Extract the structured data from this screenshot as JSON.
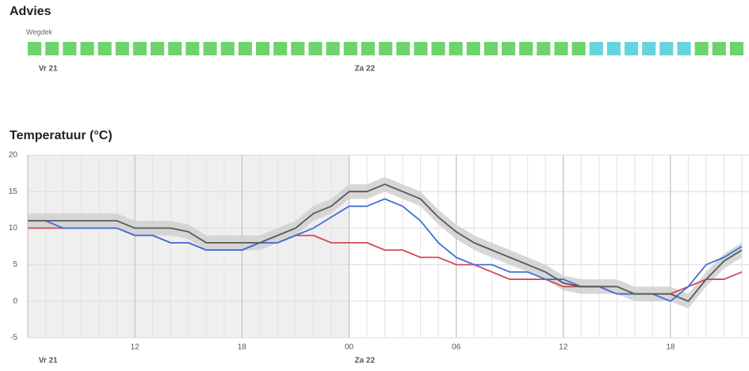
{
  "advice": {
    "title": "Advies",
    "label": "Wegdek",
    "cells": [
      "#6dd46d",
      "#6dd46d",
      "#6dd46d",
      "#6dd46d",
      "#6dd46d",
      "#6dd46d",
      "#6dd46d",
      "#6dd46d",
      "#6dd46d",
      "#6dd46d",
      "#6dd46d",
      "#6dd46d",
      "#6dd46d",
      "#6dd46d",
      "#6dd46d",
      "#6dd46d",
      "#6dd46d",
      "#6dd46d",
      "#6dd46d",
      "#6dd46d",
      "#6dd46d",
      "#6dd46d",
      "#6dd46d",
      "#6dd46d",
      "#6dd46d",
      "#6dd46d",
      "#6dd46d",
      "#6dd46d",
      "#6dd46d",
      "#6dd46d",
      "#6dd46d",
      "#6dd46d",
      "#66d4dc",
      "#66d4dc",
      "#66d4dc",
      "#66d4dc",
      "#66d4dc",
      "#66d4dc",
      "#6dd46d",
      "#6dd46d",
      "#6dd46d"
    ]
  },
  "chart_data": {
    "type": "line",
    "title": "Temperatuur (°C)",
    "x": [
      0,
      1,
      2,
      3,
      4,
      5,
      6,
      7,
      8,
      9,
      10,
      11,
      12,
      13,
      14,
      15,
      16,
      17,
      18,
      19,
      20,
      21,
      22,
      23,
      24,
      25,
      26,
      27,
      28,
      29,
      30,
      31,
      32,
      33,
      34,
      35,
      36,
      37,
      38,
      39,
      40
    ],
    "xlim": [
      0,
      40.4
    ],
    "xticks": [
      {
        "value": 6,
        "label": "12"
      },
      {
        "value": 12,
        "label": "18"
      },
      {
        "value": 18,
        "label": "00"
      },
      {
        "value": 24,
        "label": "06"
      },
      {
        "value": 30,
        "label": "12"
      },
      {
        "value": 36,
        "label": "18"
      }
    ],
    "day_labels": [
      {
        "x": 0.3,
        "label": "Vr 21"
      },
      {
        "x": 18,
        "label": "Za 22"
      }
    ],
    "shaded_until": 18,
    "ylim": [
      -5,
      20
    ],
    "yticks": [
      -5,
      0,
      5,
      10,
      15,
      20
    ],
    "grid": true,
    "band": {
      "color": "#d0d0d0",
      "low": [
        10,
        10,
        10,
        10,
        10,
        10,
        9,
        9,
        9,
        8.5,
        7,
        7,
        7,
        7,
        8,
        9,
        11,
        12,
        14,
        14,
        15,
        14,
        13,
        10.5,
        8.5,
        7,
        6,
        5,
        4,
        3,
        1.5,
        1,
        1,
        1,
        0,
        0,
        0,
        -1,
        2,
        4.5,
        6
      ],
      "high": [
        12,
        12,
        12,
        12,
        12,
        12,
        11,
        11,
        11,
        10.5,
        9,
        9,
        9,
        9,
        10,
        11,
        13,
        14,
        16,
        16,
        17,
        16,
        15,
        12.5,
        10.5,
        9,
        8,
        7,
        6,
        5,
        3.5,
        3,
        3,
        3,
        2,
        2,
        2,
        1,
        4,
        6.5,
        8
      ]
    },
    "series": [
      {
        "color": "#d04a5a",
        "values": [
          10,
          10,
          10,
          10,
          10,
          10,
          9,
          9,
          8,
          8,
          7,
          7,
          7,
          8,
          8,
          9,
          9,
          8,
          8,
          8,
          7,
          7,
          6,
          6,
          5,
          5,
          4,
          3,
          3,
          3,
          2,
          2,
          2,
          1,
          1,
          1,
          1,
          2,
          3,
          3,
          4
        ]
      },
      {
        "color": "#3f6fd8",
        "values": [
          11,
          11,
          10,
          10,
          10,
          10,
          9,
          9,
          8,
          8,
          7,
          7,
          7,
          8,
          8,
          9,
          10,
          11.5,
          13,
          13,
          14,
          13,
          11,
          8,
          6,
          5,
          5,
          4,
          4,
          3,
          3,
          2,
          2,
          1,
          1,
          1,
          0,
          2,
          5,
          6,
          7.5
        ]
      },
      {
        "color": "#555a55",
        "values": [
          11,
          11,
          11,
          11,
          11,
          11,
          10,
          10,
          10,
          9.5,
          8,
          8,
          8,
          8,
          9,
          10,
          12,
          13,
          15,
          15,
          16,
          15,
          14,
          11.5,
          9.5,
          8,
          7,
          6,
          5,
          4,
          2.5,
          2,
          2,
          2,
          1,
          1,
          1,
          0,
          3,
          5.5,
          7
        ]
      }
    ]
  }
}
